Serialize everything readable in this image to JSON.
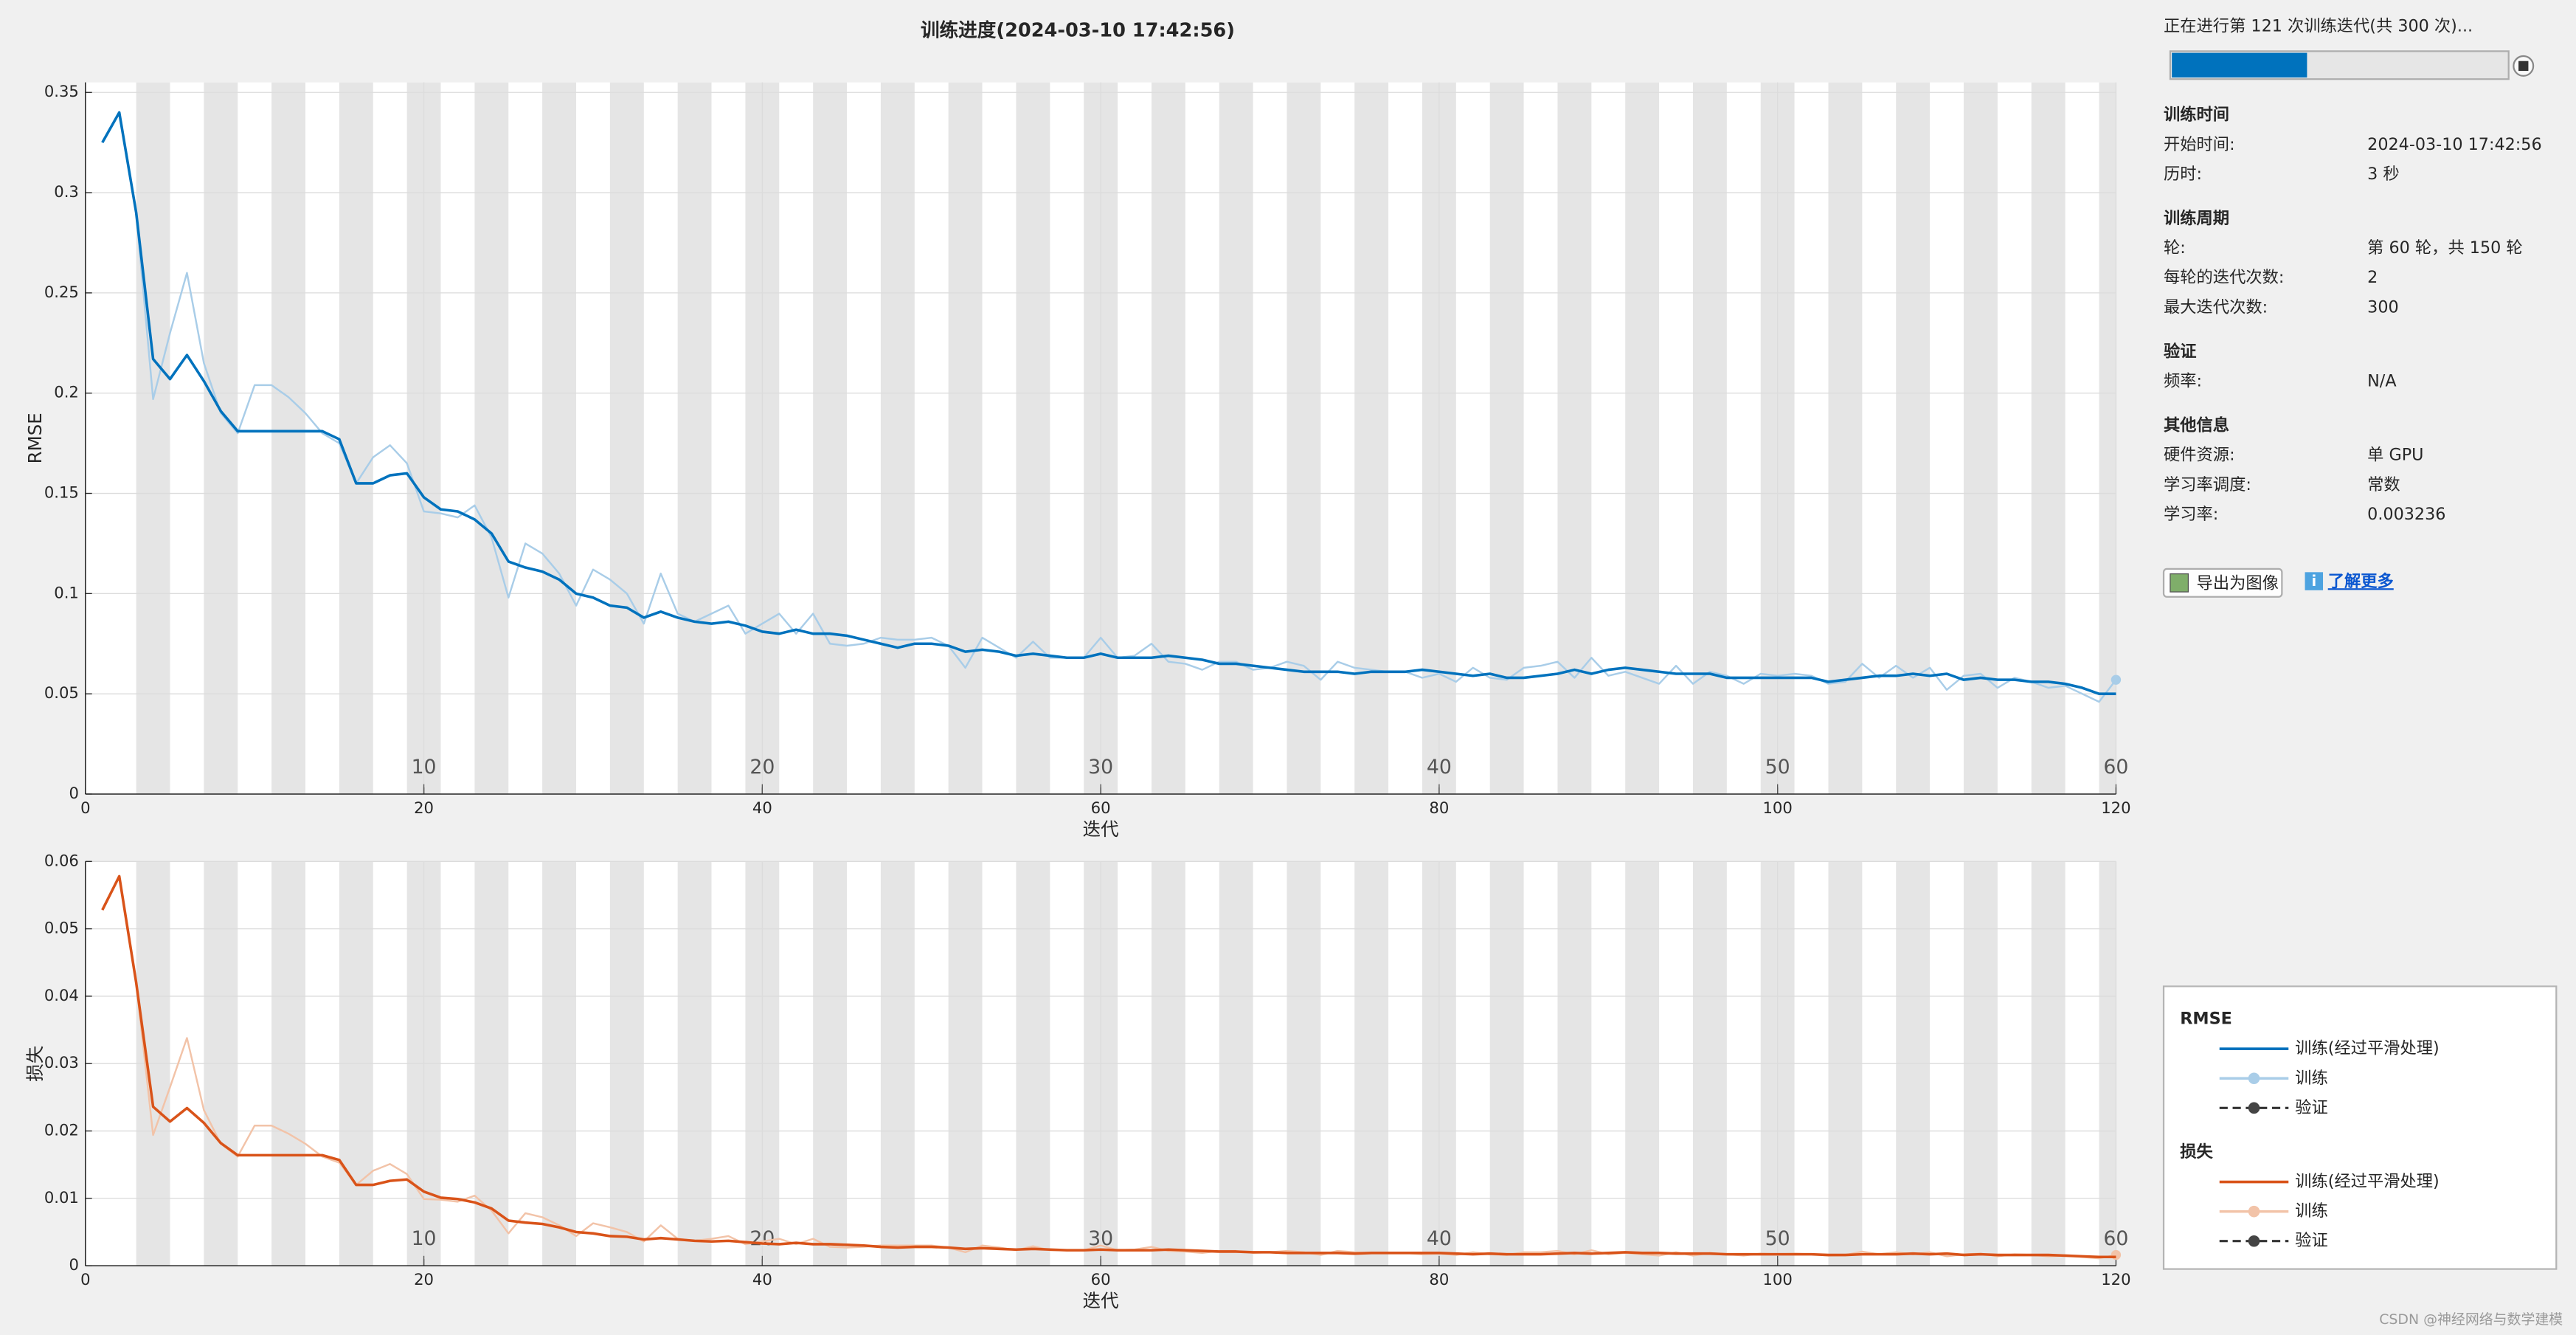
{
  "window": {
    "title": "训练进度(2024-03-10 17:42:56)",
    "watermark": "CSDN @神经网络与数学建模"
  },
  "chart_data": [
    {
      "type": "line",
      "ylabel": "RMSE",
      "xlabel": "迭代",
      "validation_label": "验证",
      "xlim": [
        0,
        120
      ],
      "xticks": [
        0,
        20,
        40,
        60,
        80,
        100,
        120
      ],
      "ylim": [
        0,
        0.355
      ],
      "yticks": [
        0,
        0.05,
        0.1,
        0.15,
        0.2,
        0.25,
        0.3,
        0.35
      ],
      "grid": true,
      "epoch_ticks": [
        {
          "value": 20,
          "label": "10"
        },
        {
          "value": 40,
          "label": "20"
        },
        {
          "value": 60,
          "label": "30"
        },
        {
          "value": 80,
          "label": "40"
        },
        {
          "value": 100,
          "label": "50"
        },
        {
          "value": 120,
          "label": "60"
        }
      ],
      "x": [
        1,
        2,
        3,
        4,
        5,
        6,
        7,
        8,
        9,
        10,
        11,
        12,
        13,
        14,
        15,
        16,
        17,
        18,
        19,
        20,
        21,
        22,
        23,
        24,
        25,
        26,
        27,
        28,
        29,
        30,
        31,
        32,
        33,
        34,
        35,
        36,
        37,
        38,
        39,
        40,
        41,
        42,
        43,
        44,
        45,
        46,
        47,
        48,
        49,
        50,
        51,
        52,
        53,
        54,
        55,
        56,
        57,
        58,
        59,
        60,
        61,
        62,
        63,
        64,
        65,
        66,
        67,
        68,
        69,
        70,
        71,
        72,
        73,
        74,
        75,
        76,
        77,
        78,
        79,
        80,
        81,
        82,
        83,
        84,
        85,
        86,
        87,
        88,
        89,
        90,
        91,
        92,
        93,
        94,
        95,
        96,
        97,
        98,
        99,
        100,
        101,
        102,
        103,
        104,
        105,
        106,
        107,
        108,
        109,
        110,
        111,
        112,
        113,
        114,
        115,
        116,
        117,
        118,
        119,
        120
      ],
      "series": [
        {
          "name": "训练",
          "color": "#a9cde8",
          "values": [
            0.325,
            0.34,
            0.29,
            0.197,
            0.23,
            0.26,
            0.215,
            0.19,
            0.18,
            0.204,
            0.204,
            0.198,
            0.19,
            0.18,
            0.175,
            0.155,
            0.168,
            0.174,
            0.165,
            0.141,
            0.14,
            0.138,
            0.144,
            0.128,
            0.098,
            0.125,
            0.12,
            0.11,
            0.094,
            0.112,
            0.107,
            0.1,
            0.085,
            0.11,
            0.09,
            0.086,
            0.09,
            0.094,
            0.08,
            0.085,
            0.09,
            0.08,
            0.09,
            0.075,
            0.074,
            0.075,
            0.078,
            0.077,
            0.077,
            0.078,
            0.074,
            0.063,
            0.078,
            0.073,
            0.068,
            0.076,
            0.068,
            0.068,
            0.068,
            0.078,
            0.068,
            0.069,
            0.075,
            0.066,
            0.065,
            0.062,
            0.066,
            0.066,
            0.062,
            0.063,
            0.066,
            0.064,
            0.057,
            0.066,
            0.063,
            0.062,
            0.061,
            0.061,
            0.058,
            0.06,
            0.056,
            0.063,
            0.058,
            0.057,
            0.063,
            0.064,
            0.066,
            0.058,
            0.068,
            0.059,
            0.061,
            0.058,
            0.055,
            0.064,
            0.055,
            0.061,
            0.059,
            0.055,
            0.06,
            0.059,
            0.06,
            0.059,
            0.055,
            0.056,
            0.065,
            0.058,
            0.064,
            0.058,
            0.063,
            0.052,
            0.059,
            0.06,
            0.053,
            0.058,
            0.056,
            0.053,
            0.054,
            0.05,
            0.046,
            0.057
          ]
        },
        {
          "name": "训练(经过平滑处理)",
          "color": "#0072bd",
          "values": [
            0.325,
            0.34,
            0.29,
            0.217,
            0.207,
            0.219,
            0.206,
            0.191,
            0.181,
            0.181,
            0.181,
            0.181,
            0.181,
            0.181,
            0.177,
            0.155,
            0.155,
            0.159,
            0.16,
            0.148,
            0.142,
            0.141,
            0.137,
            0.13,
            0.116,
            0.113,
            0.111,
            0.107,
            0.1,
            0.098,
            0.094,
            0.093,
            0.088,
            0.091,
            0.088,
            0.086,
            0.085,
            0.086,
            0.084,
            0.081,
            0.08,
            0.082,
            0.08,
            0.08,
            0.079,
            0.077,
            0.075,
            0.073,
            0.075,
            0.075,
            0.074,
            0.071,
            0.072,
            0.071,
            0.069,
            0.07,
            0.069,
            0.068,
            0.068,
            0.07,
            0.068,
            0.068,
            0.068,
            0.069,
            0.068,
            0.067,
            0.065,
            0.065,
            0.064,
            0.063,
            0.062,
            0.061,
            0.061,
            0.061,
            0.06,
            0.061,
            0.061,
            0.061,
            0.062,
            0.061,
            0.06,
            0.059,
            0.06,
            0.058,
            0.058,
            0.059,
            0.06,
            0.062,
            0.06,
            0.062,
            0.063,
            0.062,
            0.061,
            0.06,
            0.06,
            0.06,
            0.058,
            0.058,
            0.058,
            0.058,
            0.058,
            0.058,
            0.056,
            0.057,
            0.058,
            0.059,
            0.059,
            0.06,
            0.059,
            0.06,
            0.057,
            0.058,
            0.057,
            0.057,
            0.056,
            0.056,
            0.055,
            0.053,
            0.05,
            0.05
          ]
        }
      ]
    },
    {
      "type": "line",
      "ylabel": "损失",
      "xlabel": "迭代",
      "validation_label": "验证",
      "xlim": [
        0,
        120
      ],
      "xticks": [
        0,
        20,
        40,
        60,
        80,
        100,
        120
      ],
      "ylim": [
        0,
        0.06
      ],
      "yticks": [
        0,
        0.01,
        0.02,
        0.03,
        0.04,
        0.05,
        0.06
      ],
      "grid": true,
      "epoch_ticks": [
        {
          "value": 20,
          "label": "10"
        },
        {
          "value": 40,
          "label": "20"
        },
        {
          "value": 60,
          "label": "30"
        },
        {
          "value": 80,
          "label": "40"
        },
        {
          "value": 100,
          "label": "50"
        },
        {
          "value": 120,
          "label": "60"
        }
      ],
      "x": [
        1,
        2,
        3,
        4,
        5,
        6,
        7,
        8,
        9,
        10,
        11,
        12,
        13,
        14,
        15,
        16,
        17,
        18,
        19,
        20,
        21,
        22,
        23,
        24,
        25,
        26,
        27,
        28,
        29,
        30,
        31,
        32,
        33,
        34,
        35,
        36,
        37,
        38,
        39,
        40,
        41,
        42,
        43,
        44,
        45,
        46,
        47,
        48,
        49,
        50,
        51,
        52,
        53,
        54,
        55,
        56,
        57,
        58,
        59,
        60,
        61,
        62,
        63,
        64,
        65,
        66,
        67,
        68,
        69,
        70,
        71,
        72,
        73,
        74,
        75,
        76,
        77,
        78,
        79,
        80,
        81,
        82,
        83,
        84,
        85,
        86,
        87,
        88,
        89,
        90,
        91,
        92,
        93,
        94,
        95,
        96,
        97,
        98,
        99,
        100,
        101,
        102,
        103,
        104,
        105,
        106,
        107,
        108,
        109,
        110,
        111,
        112,
        113,
        114,
        115,
        116,
        117,
        118,
        119,
        120
      ],
      "series": [
        {
          "name": "训练",
          "color": "#f2c3a8",
          "values": [
            0.0528,
            0.0578,
            0.042,
            0.0194,
            0.0265,
            0.0338,
            0.0231,
            0.0181,
            0.0162,
            0.0208,
            0.0208,
            0.0196,
            0.0181,
            0.0162,
            0.0153,
            0.012,
            0.0141,
            0.0151,
            0.0136,
            0.0099,
            0.0098,
            0.0095,
            0.0104,
            0.0082,
            0.0048,
            0.0078,
            0.0072,
            0.006,
            0.0044,
            0.0063,
            0.0057,
            0.005,
            0.0036,
            0.006,
            0.004,
            0.0037,
            0.004,
            0.0044,
            0.0032,
            0.0036,
            0.004,
            0.0032,
            0.004,
            0.0028,
            0.0027,
            0.0028,
            0.003,
            0.003,
            0.003,
            0.003,
            0.0027,
            0.002,
            0.003,
            0.0027,
            0.0023,
            0.0029,
            0.0023,
            0.0023,
            0.0023,
            0.003,
            0.0023,
            0.0024,
            0.0028,
            0.0022,
            0.0021,
            0.0019,
            0.0022,
            0.0022,
            0.0019,
            0.002,
            0.0022,
            0.002,
            0.0016,
            0.0022,
            0.002,
            0.0019,
            0.0019,
            0.0019,
            0.0017,
            0.0018,
            0.0016,
            0.002,
            0.0017,
            0.0016,
            0.002,
            0.002,
            0.0022,
            0.0017,
            0.0023,
            0.0017,
            0.0019,
            0.0017,
            0.0015,
            0.002,
            0.0015,
            0.0019,
            0.0017,
            0.0015,
            0.0018,
            0.0017,
            0.0018,
            0.0017,
            0.0015,
            0.0016,
            0.0021,
            0.0017,
            0.002,
            0.0017,
            0.002,
            0.0014,
            0.0017,
            0.0018,
            0.0014,
            0.0017,
            0.0016,
            0.0014,
            0.0015,
            0.0013,
            0.0011,
            0.0016
          ]
        },
        {
          "name": "训练(经过平滑处理)",
          "color": "#d95319",
          "values": [
            0.0528,
            0.0578,
            0.042,
            0.0236,
            0.0214,
            0.0234,
            0.0212,
            0.0182,
            0.0164,
            0.0164,
            0.0164,
            0.0164,
            0.0164,
            0.0164,
            0.0157,
            0.012,
            0.012,
            0.0126,
            0.0128,
            0.011,
            0.0101,
            0.0099,
            0.0094,
            0.0085,
            0.0067,
            0.0064,
            0.0062,
            0.0057,
            0.005,
            0.0048,
            0.0044,
            0.0043,
            0.0039,
            0.0041,
            0.0039,
            0.0037,
            0.0036,
            0.0037,
            0.0035,
            0.0033,
            0.0032,
            0.0034,
            0.0032,
            0.0032,
            0.0031,
            0.003,
            0.0028,
            0.0027,
            0.0028,
            0.0028,
            0.0027,
            0.0025,
            0.0026,
            0.0025,
            0.0024,
            0.0025,
            0.0024,
            0.0023,
            0.0023,
            0.0024,
            0.0023,
            0.0023,
            0.0023,
            0.0024,
            0.0023,
            0.0022,
            0.0021,
            0.0021,
            0.002,
            0.002,
            0.0019,
            0.0019,
            0.0019,
            0.0019,
            0.0018,
            0.0019,
            0.0019,
            0.0019,
            0.0019,
            0.0019,
            0.0018,
            0.0017,
            0.0018,
            0.0017,
            0.0017,
            0.0017,
            0.0018,
            0.0019,
            0.0018,
            0.0019,
            0.002,
            0.0019,
            0.0019,
            0.0018,
            0.0018,
            0.0018,
            0.0017,
            0.0017,
            0.0017,
            0.0017,
            0.0017,
            0.0017,
            0.0016,
            0.0016,
            0.0017,
            0.0017,
            0.0017,
            0.0018,
            0.0017,
            0.0018,
            0.0016,
            0.0017,
            0.0016,
            0.0016,
            0.0016,
            0.0016,
            0.0015,
            0.0014,
            0.0013,
            0.0013
          ]
        }
      ]
    }
  ],
  "info_panel": {
    "status": "正在进行第 121 次训练迭代(共 300 次)...",
    "progress": {
      "current": 121,
      "total": 300
    },
    "sections": [
      {
        "title": "训练时间",
        "rows": [
          [
            "开始时间:",
            "2024-03-10 17:42:56"
          ],
          [
            "历时:",
            "3 秒"
          ]
        ]
      },
      {
        "title": "训练周期",
        "rows": [
          [
            "轮:",
            "第 60 轮，共 150 轮"
          ],
          [
            "每轮的迭代次数:",
            "2"
          ],
          [
            "最大迭代次数:",
            "300"
          ]
        ]
      },
      {
        "title": "验证",
        "rows": [
          [
            "频率:",
            "N/A"
          ]
        ]
      },
      {
        "title": "其他信息",
        "rows": [
          [
            "硬件资源:",
            "单 GPU"
          ],
          [
            "学习率调度:",
            "常数"
          ],
          [
            "学习率:",
            "0.003236"
          ]
        ]
      }
    ],
    "export_button": "导出为图像",
    "learn_more": "了解更多"
  }
}
